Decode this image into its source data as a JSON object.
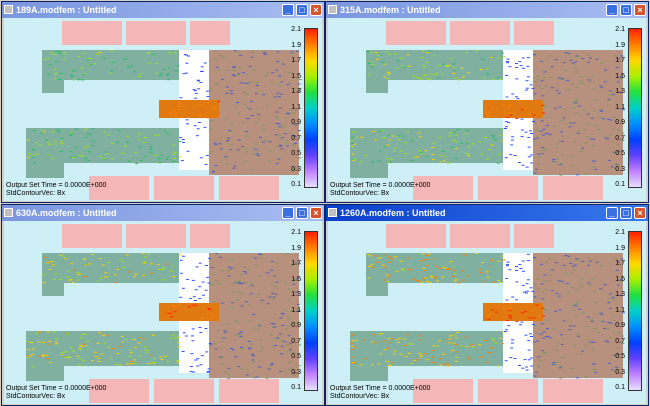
{
  "windows": [
    {
      "id": "w1",
      "title": "189A.modfem : Untitled",
      "active": false,
      "intensity": 0.35
    },
    {
      "id": "w2",
      "title": "315A.modfem : Untitled",
      "active": false,
      "intensity": 0.5
    },
    {
      "id": "w3",
      "title": "630A.modfem : Untitled",
      "active": false,
      "intensity": 0.75
    },
    {
      "id": "w4",
      "title": "1260A.modfem : Untitled",
      "active": true,
      "intensity": 0.95
    }
  ],
  "output_set": "Output Set  Time =  0.0000E+000",
  "contour_label": "StdContourVec: Bx",
  "legend_ticks": [
    "2.1",
    "1.9",
    "1.7",
    "1.5",
    "1.3",
    "1.1",
    "0.9",
    "0.7",
    "0.5",
    "0.3",
    "0.1"
  ],
  "colors": {
    "background": "#cdeff5",
    "coil": "#f4b6b6",
    "core": "#b8907e",
    "yoke": "#7fb0a0",
    "gap": "#ffffff"
  },
  "icons": {
    "minimize": "minimize-icon",
    "maximize": "maximize-icon",
    "close": "close-icon"
  }
}
